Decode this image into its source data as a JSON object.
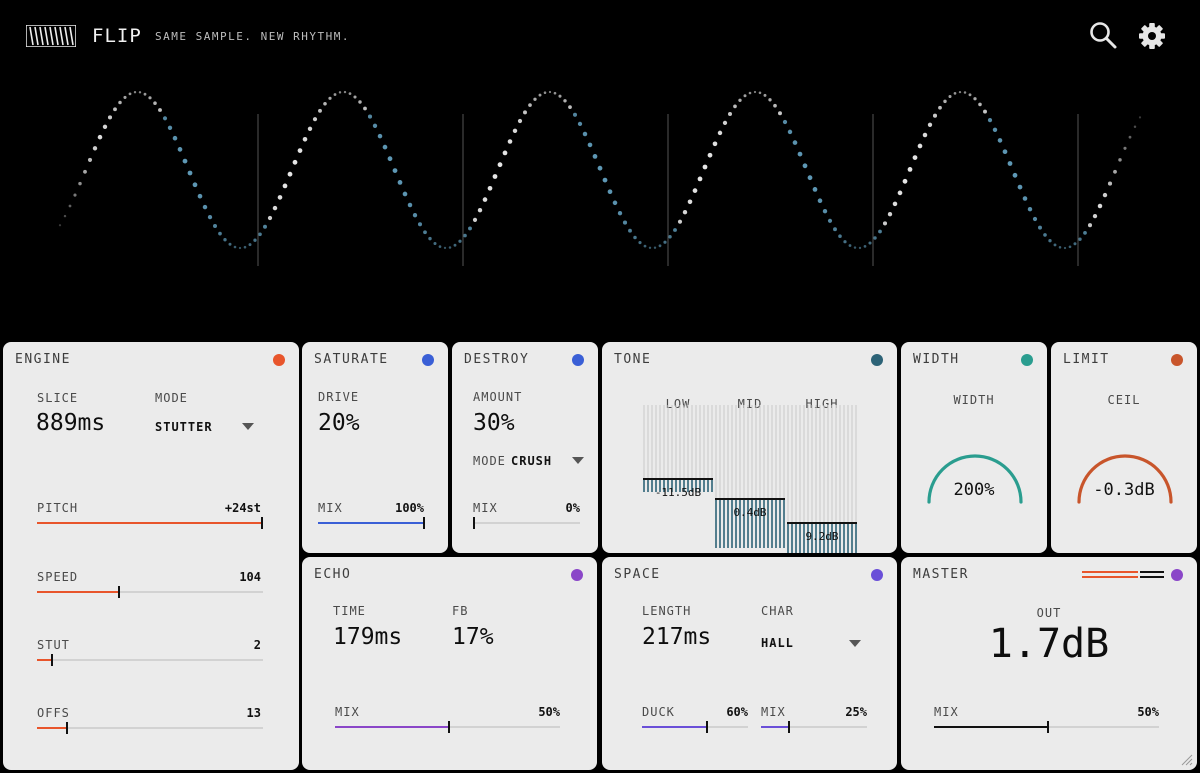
{
  "header": {
    "brand": "FLIP",
    "tagline": "SAME SAMPLE. NEW RHYTHM."
  },
  "colors": {
    "engine": "#e8552b",
    "saturate": "#3a5fd6",
    "destroy": "#3a5fd6",
    "tone": "#2d6377",
    "width": "#2a9d8f",
    "limit": "#c8552b",
    "echo": "#8a46c8",
    "space": "#6a4fd8",
    "master": "#8a46c8"
  },
  "engine": {
    "title": "ENGINE",
    "slice_label": "SLICE",
    "slice_value": "889ms",
    "mode_label": "MODE",
    "mode_value": "STUTTER",
    "pitch_label": "PITCH",
    "pitch_value": "+24st",
    "pitch_level": 1.0,
    "speed_label": "SPEED",
    "speed_value": "104",
    "speed_level": 0.36,
    "stut_label": "STUT",
    "stut_value": "2",
    "stut_level": 0.06,
    "offs_label": "OFFS",
    "offs_value": "13",
    "offs_level": 0.13
  },
  "saturate": {
    "title": "SATURATE",
    "drive_label": "DRIVE",
    "drive_value": "20%",
    "mix_label": "MIX",
    "mix_value": "100%",
    "mix_level": 1.0
  },
  "destroy": {
    "title": "DESTROY",
    "amount_label": "AMOUNT",
    "amount_value": "30%",
    "mode_label": "MODE",
    "mode_value": "CRUSH",
    "mix_label": "MIX",
    "mix_value": "0%",
    "mix_level": 0.0
  },
  "tone": {
    "title": "TONE",
    "bands": [
      {
        "label": "LOW",
        "value": "-11.5dB",
        "level": 0.12
      },
      {
        "label": "MID",
        "value": "0.4dB",
        "level": 0.42
      },
      {
        "label": "HIGH",
        "value": "9.2dB",
        "level": 0.72
      }
    ]
  },
  "width": {
    "title": "WIDTH",
    "label": "WIDTH",
    "value": "200%",
    "level": 1.0
  },
  "limit": {
    "title": "LIMIT",
    "label": "CEIL",
    "value": "-0.3dB",
    "level": 1.0
  },
  "echo": {
    "title": "ECHO",
    "time_label": "TIME",
    "time_value": "179ms",
    "fb_label": "FB",
    "fb_value": "17%",
    "mix_label": "MIX",
    "mix_value": "50%",
    "mix_level": 0.5
  },
  "space": {
    "title": "SPACE",
    "length_label": "LENGTH",
    "length_value": "217ms",
    "char_label": "CHAR",
    "char_value": "HALL",
    "duck_label": "DUCK",
    "duck_value": "60%",
    "duck_level": 0.6,
    "mix_label": "MIX",
    "mix_value": "25%",
    "mix_level": 0.25
  },
  "master": {
    "title": "MASTER",
    "out_label": "OUT",
    "out_value": "1.7dB",
    "mix_label": "MIX",
    "mix_value": "50%",
    "mix_level": 0.5
  }
}
